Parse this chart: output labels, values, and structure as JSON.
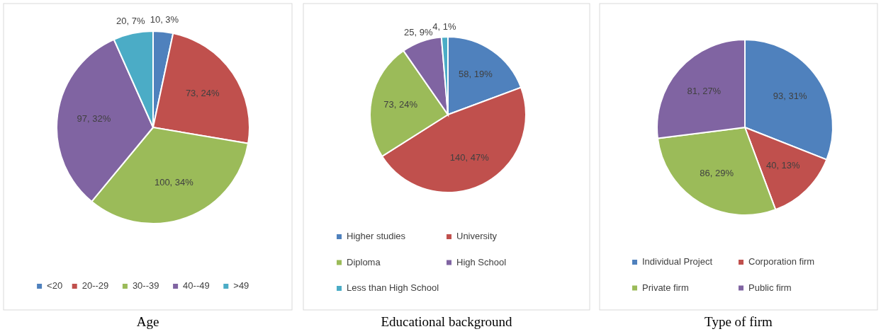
{
  "chart_data": [
    {
      "type": "pie",
      "title": "Age",
      "categories": [
        "<20",
        "20--29",
        "30--39",
        "40--49",
        ">49"
      ],
      "values": [
        10,
        73,
        100,
        97,
        20
      ],
      "colors": [
        "#4f81bd",
        "#c0504d",
        "#9bbb59",
        "#8064a2",
        "#4bacc6"
      ],
      "value_labels": [
        "10, 3%",
        "73, 24%",
        "100, 34%",
        "97, 32%",
        "20, 7%"
      ],
      "legend": "bottom"
    },
    {
      "type": "pie",
      "title": "Educational background",
      "categories": [
        "Higher studies",
        "University",
        "Diploma",
        "High School",
        "Less than High School"
      ],
      "values": [
        58,
        140,
        73,
        25,
        4
      ],
      "colors": [
        "#4f81bd",
        "#c0504d",
        "#9bbb59",
        "#8064a2",
        "#4bacc6"
      ],
      "value_labels": [
        "58, 19%",
        "140, 47%",
        "73, 24%",
        "25, 9%",
        "4, 1%"
      ],
      "legend": "bottom"
    },
    {
      "type": "pie",
      "title": "Type of firm",
      "categories": [
        "Individual Project",
        "Corporation firm",
        "Private firm",
        "Public firm"
      ],
      "values": [
        93,
        40,
        86,
        81
      ],
      "colors": [
        "#4f81bd",
        "#c0504d",
        "#9bbb59",
        "#8064a2"
      ],
      "value_labels": [
        "93, 31%",
        "40, 13%",
        "86, 29%",
        "81, 27%"
      ],
      "legend": "bottom"
    }
  ]
}
